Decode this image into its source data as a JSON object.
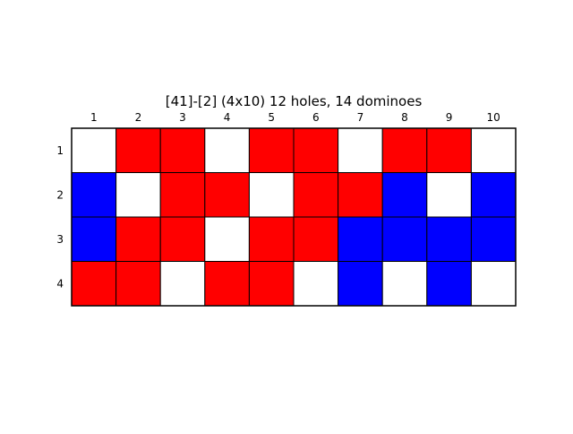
{
  "title": "[41]-[2]  (4x10) 12 holes, 14 dominoes",
  "board": {
    "rows": 4,
    "cols": 10,
    "col_labels": [
      "1",
      "2",
      "3",
      "4",
      "5",
      "6",
      "7",
      "8",
      "9",
      "10"
    ],
    "row_labels": [
      "1",
      "2",
      "3",
      "4"
    ],
    "colors": {
      "hole": "#ffffff",
      "red": "#ff0000",
      "blue": "#0000ff",
      "grid": "#000000"
    },
    "cells": [
      [
        "hole",
        "red",
        "red",
        "hole",
        "red",
        "red",
        "hole",
        "red",
        "red",
        "hole"
      ],
      [
        "blue",
        "hole",
        "red",
        "red",
        "hole",
        "red",
        "red",
        "blue",
        "hole",
        "blue"
      ],
      [
        "blue",
        "red",
        "red",
        "hole",
        "red",
        "red",
        "blue",
        "blue",
        "blue",
        "blue"
      ],
      [
        "red",
        "red",
        "hole",
        "red",
        "red",
        "hole",
        "blue",
        "hole",
        "blue",
        "hole"
      ]
    ]
  }
}
